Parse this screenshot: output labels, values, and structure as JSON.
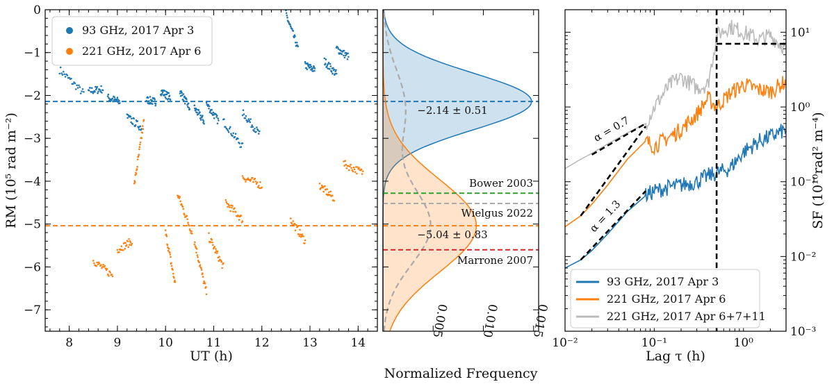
{
  "figure": {
    "panels": [
      "rm-timeseries",
      "rm-histogram",
      "structure-function"
    ]
  },
  "chart_data": [
    {
      "type": "scatter",
      "xlabel": "UT (h)",
      "ylabel": "RM (10⁵ rad m⁻²)",
      "xlim": [
        7.5,
        14.4
      ],
      "ylim": [
        -7.5,
        0
      ],
      "xticks": [
        "8",
        "9",
        "10",
        "11",
        "12",
        "13",
        "14"
      ],
      "yticks": [
        "0",
        "−1",
        "−2",
        "−3",
        "−4",
        "−5",
        "−6",
        "−7"
      ],
      "legend_position": "top-left",
      "series": [
        {
          "name": "93 GHz, 2017 Apr 3",
          "color": "#1f77b4",
          "mean_line": -2.14,
          "segments": [
            {
              "x": [
                7.8,
                8.3
              ],
              "y": [
                -1.4,
                -1.95
              ]
            },
            {
              "x": [
                8.4,
                8.7
              ],
              "y": [
                -1.9,
                -1.85
              ]
            },
            {
              "x": [
                8.8,
                9.05
              ],
              "y": [
                -2.05,
                -2.15
              ]
            },
            {
              "x": [
                9.6,
                9.8
              ],
              "y": [
                -2.1,
                -2.15
              ]
            },
            {
              "x": [
                9.9,
                10.1
              ],
              "y": [
                -1.9,
                -2.05
              ]
            },
            {
              "x": [
                10.3,
                10.5
              ],
              "y": [
                -1.9,
                -2.3
              ]
            },
            {
              "x": [
                10.6,
                10.8
              ],
              "y": [
                -2.3,
                -2.6
              ]
            },
            {
              "x": [
                10.85,
                11.1
              ],
              "y": [
                -2.2,
                -2.6
              ]
            },
            {
              "x": [
                11.2,
                11.6
              ],
              "y": [
                -2.6,
                -3.2
              ]
            },
            {
              "x": [
                11.6,
                11.95
              ],
              "y": [
                -2.4,
                -2.9
              ]
            },
            {
              "x": [
                12.5,
                12.75
              ],
              "y": [
                -0.1,
                -0.9
              ]
            },
            {
              "x": [
                12.9,
                13.1
              ],
              "y": [
                -1.3,
                -1.4
              ]
            },
            {
              "x": [
                13.3,
                13.55
              ],
              "y": [
                -1.2,
                -1.5
              ]
            },
            {
              "x": [
                13.55,
                13.8
              ],
              "y": [
                -0.9,
                -1.1
              ]
            },
            {
              "x": [
                9.2,
                9.5
              ],
              "y": [
                -2.5,
                -2.75
              ]
            }
          ]
        },
        {
          "name": "221 GHz, 2017 Apr 6",
          "color": "#ff7f0e",
          "mean_line": -5.04,
          "segments": [
            {
              "x": [
                8.5,
                8.9
              ],
              "y": [
                -5.85,
                -6.2
              ]
            },
            {
              "x": [
                9.0,
                9.3
              ],
              "y": [
                -5.6,
                -5.4
              ]
            },
            {
              "x": [
                9.35,
                9.55
              ],
              "y": [
                -4.1,
                -2.6
              ]
            },
            {
              "x": [
                10.0,
                10.2
              ],
              "y": [
                -5.2,
                -6.4
              ]
            },
            {
              "x": [
                10.25,
                10.55
              ],
              "y": [
                -4.3,
                -5.2
              ]
            },
            {
              "x": [
                10.6,
                10.85
              ],
              "y": [
                -5.4,
                -6.6
              ]
            },
            {
              "x": [
                10.9,
                11.2
              ],
              "y": [
                -5.3,
                -6.0
              ]
            },
            {
              "x": [
                11.25,
                11.6
              ],
              "y": [
                -4.5,
                -4.9
              ]
            },
            {
              "x": [
                11.6,
                12.0
              ],
              "y": [
                -3.9,
                -4.1
              ]
            },
            {
              "x": [
                12.6,
                12.9
              ],
              "y": [
                -4.9,
                -5.4
              ]
            },
            {
              "x": [
                13.2,
                13.5
              ],
              "y": [
                -4.1,
                -4.4
              ]
            },
            {
              "x": [
                13.7,
                14.1
              ],
              "y": [
                -3.6,
                -3.8
              ]
            }
          ]
        }
      ]
    },
    {
      "type": "area",
      "xlabel": "Normalized Frequency",
      "xlim": [
        0,
        0.0155
      ],
      "xticks": [
        "0.005",
        "0.010",
        "0.015"
      ],
      "ylim": [
        -7.5,
        0
      ],
      "series": [
        {
          "name": "",
          "color": "#1f77b4",
          "center": -2.14,
          "sigma": 0.51,
          "peak": 0.0148
        },
        {
          "name": "",
          "color": "#ff7f0e",
          "center": -5.04,
          "sigma": 0.83,
          "peak": 0.0093
        },
        {
          "name": "",
          "color": "#aaaaaa",
          "dashed": true
        }
      ],
      "annotations": [
        {
          "text": "−2.14 ± 0.51",
          "y": -2.35
        },
        {
          "text": "−5.04 ± 0.83",
          "y": -5.25
        },
        {
          "text": "Bower 2003",
          "y": -4.05,
          "line_y": -4.28,
          "color": "#2ca02c"
        },
        {
          "text": "Wielgus 2022",
          "y": -4.75,
          "line_y": -4.52,
          "color": "#aaaaaa"
        },
        {
          "text": "Marrone 2007",
          "y": -5.85,
          "line_y": -5.6,
          "color": "#d62728"
        }
      ]
    },
    {
      "type": "line",
      "xlabel": "Lag τ (h)",
      "ylabel": "SF (10¹⁰rad² m⁻⁴)",
      "x_scale": "log",
      "y_scale": "log",
      "xlim": [
        0.01,
        3.0
      ],
      "ylim": [
        0.001,
        20
      ],
      "xticks": [
        "10⁻²",
        "10⁻¹",
        "10⁰"
      ],
      "yticks": [
        "10⁻³",
        "10⁻²",
        "10⁻¹",
        "10⁰",
        "10¹"
      ],
      "legend_position": "bottom-left",
      "series": [
        {
          "name": "93 GHz, 2017 Apr 3",
          "color": "#1f77b4",
          "x": [
            0.01,
            0.015,
            0.02,
            0.03,
            0.05,
            0.08,
            0.1,
            0.15,
            0.2,
            0.3,
            0.4,
            0.5,
            0.7,
            1.0,
            1.5,
            2.0,
            3.0
          ],
          "y": [
            0.007,
            0.009,
            0.012,
            0.02,
            0.04,
            0.065,
            0.075,
            0.085,
            0.09,
            0.1,
            0.12,
            0.13,
            0.15,
            0.25,
            0.35,
            0.4,
            0.5
          ]
        },
        {
          "name": "221 GHz, 2017 Apr 6",
          "color": "#ff7f0e",
          "x": [
            0.01,
            0.015,
            0.02,
            0.03,
            0.05,
            0.08,
            0.1,
            0.15,
            0.2,
            0.3,
            0.4,
            0.5,
            0.7,
            1.0,
            1.5,
            2.0,
            3.0
          ],
          "y": [
            0.025,
            0.035,
            0.05,
            0.09,
            0.2,
            0.35,
            0.3,
            0.4,
            0.5,
            0.8,
            1.3,
            1.0,
            1.5,
            2.0,
            1.7,
            1.6,
            2.2
          ]
        },
        {
          "name": "221 GHz, 2017 Apr 6+7+11",
          "color": "#bbbbbb",
          "x": [
            0.01,
            0.015,
            0.02,
            0.03,
            0.05,
            0.08,
            0.1,
            0.15,
            0.2,
            0.3,
            0.4,
            0.5,
            0.7,
            1.0,
            1.5,
            2.0,
            3.0
          ],
          "y": [
            0.15,
            0.2,
            0.24,
            0.32,
            0.45,
            0.6,
            1.0,
            2.0,
            2.5,
            1.8,
            2.0,
            9.0,
            12.0,
            10.0,
            8.0,
            9.0,
            6.0
          ]
        }
      ],
      "fit_lines": [
        {
          "label": "α = 0.7",
          "x": [
            0.02,
            0.08
          ],
          "y": [
            0.23,
            0.6
          ]
        },
        {
          "label": "α = 1.3",
          "x": [
            0.015,
            0.08
          ],
          "y": [
            0.009,
            0.075
          ]
        },
        {
          "label": "",
          "x": [
            0.015,
            0.08
          ],
          "y": [
            0.035,
            0.55
          ]
        },
        {
          "label": "",
          "x": [
            0.5,
            3.0
          ],
          "y": [
            7.0,
            7.0
          ]
        }
      ],
      "vline_x": 0.5
    }
  ]
}
